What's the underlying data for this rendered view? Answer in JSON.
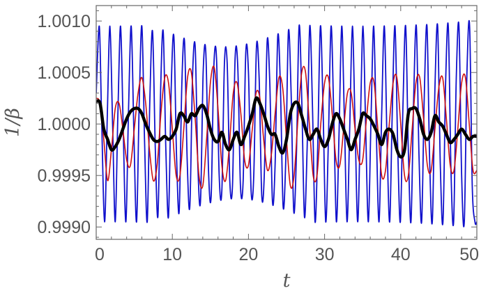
{
  "chart_data": {
    "type": "line",
    "title": "",
    "xlabel": "t",
    "ylabel": "1/β",
    "xlim": [
      0,
      50
    ],
    "ylim": [
      0.99888,
      1.00115
    ],
    "x_ticks": [
      0,
      10,
      20,
      30,
      40,
      50
    ],
    "x_tick_labels": [
      "0",
      "10",
      "20",
      "30",
      "40",
      "50"
    ],
    "y_ticks": [
      0.999,
      0.9995,
      1.0,
      1.0005,
      1.001
    ],
    "y_tick_labels": [
      "0.9990",
      "0.9995",
      "1.0000",
      "1.0005",
      "1.0010"
    ],
    "grid": false,
    "legend": "none",
    "series": [
      {
        "color": "#1010cc",
        "x": [
          0,
          0.4,
          0.7,
          1.1,
          1.45,
          1.8,
          2.15,
          2.5,
          2.85,
          3.2,
          3.55,
          3.9,
          4.25,
          4.6,
          4.95,
          5.3,
          5.65,
          6.0,
          6.35,
          6.7,
          7.05,
          7.4,
          7.75,
          8.1,
          8.45,
          8.8,
          9.15,
          9.5,
          9.85,
          10.2,
          10.55,
          10.9,
          11.25,
          11.6,
          11.95,
          12.3,
          12.65,
          13.0,
          13.35,
          13.7,
          14.05,
          14.4,
          14.75,
          15.1,
          15.45,
          15.8,
          16.15,
          16.5,
          16.85,
          17.2,
          17.55,
          17.9,
          18.25,
          18.6,
          18.95,
          19.3,
          19.65,
          20.0,
          20.35,
          20.7,
          21.05,
          21.4,
          21.75,
          22.1,
          22.45,
          22.8,
          23.15,
          23.5,
          23.85,
          24.2,
          24.55,
          24.9,
          25.25,
          25.6,
          25.95,
          26.3,
          26.65,
          27.0,
          27.35,
          27.7,
          28.05,
          28.4,
          28.75,
          29.1,
          29.45,
          29.8,
          30.15,
          30.5,
          30.85,
          31.2,
          31.55,
          31.9,
          32.25,
          32.6,
          32.95,
          33.3,
          33.65,
          34.0,
          34.35,
          34.7,
          35.05,
          35.4,
          35.75,
          36.1,
          36.45,
          36.8,
          37.15,
          37.5,
          37.85,
          38.2,
          38.55,
          38.9,
          39.25,
          39.6,
          39.95,
          40.3,
          40.65,
          41.0,
          41.35,
          41.7,
          42.05,
          42.4,
          42.75,
          43.1,
          43.45,
          43.8,
          44.15,
          44.5,
          44.85,
          45.2,
          45.55,
          45.9,
          46.25,
          46.6,
          46.95,
          47.3,
          47.65,
          48.0,
          48.35,
          48.7,
          49.05,
          49.4,
          49.75,
          50.0
        ],
        "y": [
          1.0003,
          1.00095,
          1.0001,
          0.99905,
          1.00005,
          1.00095,
          1.0,
          0.99905,
          1.0001,
          1.00095,
          0.99995,
          0.99905,
          1.00015,
          1.00095,
          0.9999,
          0.99905,
          1.0002,
          1.00095,
          0.99985,
          0.99905,
          1.00025,
          1.0009,
          0.9998,
          0.9991,
          1.0003,
          1.0009,
          0.99975,
          0.9991,
          1.00035,
          1.00085,
          0.9997,
          0.99915,
          1.0004,
          1.0008,
          0.99965,
          0.9992,
          1.00045,
          1.00075,
          0.9996,
          0.99925,
          1.0005,
          1.0007,
          0.99955,
          0.9993,
          1.00055,
          1.00065,
          0.9995,
          0.99935,
          1.0006,
          1.0006,
          0.99945,
          0.9994,
          1.00065,
          1.00055,
          0.9994,
          0.99945,
          1.0007,
          1.0005,
          0.99935,
          0.9995,
          1.00075,
          1.00045,
          0.9993,
          0.99955,
          1.0008,
          1.0004,
          0.99925,
          0.9996,
          1.00085,
          1.00035,
          0.9992,
          0.99965,
          1.0009,
          1.0003,
          0.99915,
          0.9997,
          1.00095,
          1.00025,
          0.9991,
          0.99975,
          1.00095,
          1.0002,
          0.99905,
          0.9998,
          1.00095,
          1.00015,
          0.99905,
          0.99985,
          1.00095,
          1.0001,
          0.99905,
          0.9999,
          1.00095,
          1.00005,
          0.99905,
          0.99995,
          1.00095,
          1.0,
          0.99905,
          1.0,
          1.00095,
          0.99995,
          0.99905,
          1.00005,
          1.00095,
          0.9999,
          0.99905,
          1.0001,
          1.00095,
          0.99985,
          0.99905,
          1.00015,
          1.00095,
          0.9998,
          0.99905,
          1.0002,
          1.00095,
          0.99975,
          0.99905,
          1.00025,
          1.00095,
          0.9997,
          0.99905,
          1.0003,
          1.00095,
          0.99965,
          0.99905,
          1.00035,
          1.00095,
          0.9996,
          0.99905,
          1.0004,
          1.00095,
          0.99955,
          0.99905,
          1.00045,
          1.00095,
          0.9995,
          0.99905,
          1.0005,
          1.00095,
          0.9994,
          0.99905,
          0.99905
        ]
      },
      {
        "color": "#cc1010",
        "x": [
          0,
          0.5,
          1.0,
          1.5,
          2.0,
          2.5,
          3.0,
          3.5,
          4.0,
          4.5,
          5.0,
          5.5,
          6.0,
          6.5,
          7.0,
          7.5,
          8.0,
          8.5,
          9.0,
          9.5,
          10.0,
          10.5,
          11.0,
          11.5,
          12.0,
          12.5,
          13.0,
          13.5,
          14.0,
          14.5,
          15.0,
          15.5,
          16.0,
          16.5,
          17.0,
          17.5,
          18.0,
          18.5,
          19.0,
          19.5,
          20.0,
          20.5,
          21.0,
          21.5,
          22.0,
          22.5,
          23.0,
          23.5,
          24.0,
          24.5,
          25.0,
          25.5,
          26.0,
          26.5,
          27.0,
          27.5,
          28.0,
          28.5,
          29.0,
          29.5,
          30.0,
          30.5,
          31.0,
          31.5,
          32.0,
          32.5,
          33.0,
          33.5,
          34.0,
          34.5,
          35.0,
          35.5,
          36.0,
          36.5,
          37.0,
          37.5,
          38.0,
          38.5,
          39.0,
          39.5,
          40.0,
          40.5,
          41.0,
          41.5,
          42.0,
          42.5,
          43.0,
          43.5,
          44.0,
          44.5,
          45.0,
          45.5,
          46.0,
          46.5,
          47.0,
          47.5,
          48.0,
          48.5,
          49.0,
          49.5,
          50.0
        ],
        "y": [
          1.00025,
          1.0002,
          0.99985,
          0.99945,
          0.99975,
          1.00015,
          1.0002,
          0.99995,
          0.99965,
          0.9996,
          0.99995,
          1.0003,
          1.00045,
          1.0002,
          0.99975,
          0.99945,
          0.9996,
          1.0001,
          1.00045,
          1.0004,
          0.99995,
          0.9995,
          0.9995,
          0.99995,
          1.00045,
          1.0005,
          1.00005,
          0.9995,
          0.9994,
          0.99985,
          1.0004,
          1.00055,
          1.00015,
          0.9996,
          0.99945,
          0.9998,
          1.0003,
          1.0004,
          1.0001,
          0.99965,
          0.9996,
          0.99995,
          1.0003,
          1.00025,
          0.99985,
          0.99955,
          0.9997,
          1.0001,
          1.00045,
          1.00035,
          0.99985,
          0.9994,
          0.9995,
          1.00005,
          1.0005,
          1.0005,
          1.0,
          0.9995,
          0.9995,
          1.0,
          1.0004,
          1.00045,
          1.0001,
          0.99965,
          0.9996,
          0.99995,
          1.0003,
          1.0003,
          0.99995,
          0.99965,
          0.99965,
          1.00005,
          1.0004,
          1.0004,
          0.99995,
          0.9995,
          0.99955,
          1.0,
          1.0004,
          1.00045,
          1.0,
          0.9995,
          0.9995,
          0.99995,
          1.0004,
          1.00045,
          1.00005,
          0.9996,
          0.99955,
          0.99995,
          1.00035,
          1.00045,
          1.00005,
          0.9996,
          0.99955,
          0.99995,
          1.0004,
          1.00045,
          1.0,
          0.99955,
          0.99955
        ]
      },
      {
        "color": "#000000",
        "x": [
          0,
          0.5,
          1.0,
          1.5,
          2.0,
          2.5,
          3.0,
          3.5,
          4.0,
          4.5,
          5.0,
          5.5,
          6.0,
          6.5,
          7.0,
          7.5,
          8.0,
          8.5,
          9.0,
          9.5,
          10.0,
          10.5,
          11.0,
          11.5,
          12.0,
          12.5,
          13.0,
          13.5,
          14.0,
          14.5,
          15.0,
          15.5,
          16.0,
          16.5,
          17.0,
          17.5,
          18.0,
          18.5,
          19.0,
          19.5,
          20.0,
          20.5,
          21.0,
          21.5,
          22.0,
          22.5,
          23.0,
          23.5,
          24.0,
          24.5,
          25.0,
          25.5,
          26.0,
          26.5,
          27.0,
          27.5,
          28.0,
          28.5,
          29.0,
          29.5,
          30.0,
          30.5,
          31.0,
          31.5,
          32.0,
          32.5,
          33.0,
          33.5,
          34.0,
          34.5,
          35.0,
          35.5,
          36.0,
          36.5,
          37.0,
          37.5,
          38.0,
          38.5,
          39.0,
          39.5,
          40.0,
          40.5,
          41.0,
          41.5,
          42.0,
          42.5,
          43.0,
          43.5,
          44.0,
          44.5,
          45.0,
          45.5,
          46.0,
          46.5,
          47.0,
          47.5,
          48.0,
          48.5,
          49.0,
          49.5,
          50.0
        ],
        "y": [
          1.00022,
          1.0002,
          0.99995,
          0.99985,
          0.99975,
          0.99978,
          0.99985,
          0.99995,
          1.00005,
          1.00012,
          1.00015,
          1.00015,
          1.0001,
          1.0,
          0.99992,
          0.99985,
          0.99983,
          0.99985,
          0.99988,
          0.99985,
          0.99988,
          0.99995,
          1.0001,
          1.00008,
          1.00002,
          1.0001,
          1.00008,
          1.00015,
          1.00018,
          1.0001,
          0.99995,
          0.99985,
          0.99983,
          0.99992,
          0.9998,
          0.99975,
          0.99985,
          0.99992,
          0.9998,
          0.99988,
          0.99998,
          1.0001,
          1.00025,
          1.0002,
          1.0001,
          0.99998,
          0.9999,
          0.9999,
          0.99978,
          0.99972,
          0.99985,
          1.0001,
          1.0002,
          1.0002,
          1.00008,
          0.99995,
          0.99985,
          0.9999,
          0.99995,
          0.99985,
          0.99978,
          0.99985,
          1.0,
          1.0001,
          1.00005,
          0.99995,
          0.99985,
          0.99975,
          0.99985,
          0.99995,
          1.0001,
          1.00008,
          1.00005,
          0.99998,
          0.9999,
          0.9998,
          0.99992,
          0.99995,
          0.9999,
          0.99975,
          0.99968,
          0.99975,
          1.0001,
          1.00015,
          1.00015,
          1.00005,
          0.9999,
          0.99985,
          0.99992,
          1.00008,
          1.00002,
          0.99998,
          0.9999,
          0.99982,
          0.99985,
          0.9999,
          0.99995,
          0.9999,
          0.99985,
          0.99988,
          0.99988
        ]
      }
    ]
  }
}
